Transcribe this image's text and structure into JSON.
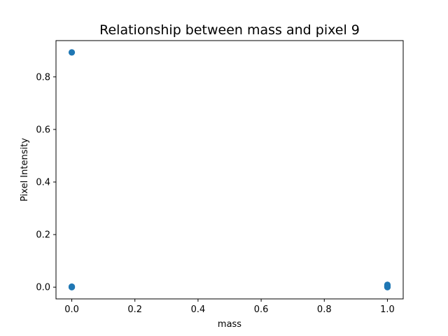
{
  "chart_data": {
    "type": "scatter",
    "title": "Relationship between mass and pixel 9",
    "xlabel": "mass",
    "ylabel": "Pixel Intensity",
    "xlim": [
      -0.05,
      1.05
    ],
    "ylim": [
      -0.0447,
      0.938
    ],
    "xticks": [
      0.0,
      0.2,
      0.4,
      0.6,
      0.8,
      1.0
    ],
    "xtick_labels": [
      "0.0",
      "0.2",
      "0.4",
      "0.6",
      "0.8",
      "1.0"
    ],
    "yticks": [
      0.0,
      0.2,
      0.4,
      0.6,
      0.8
    ],
    "ytick_labels": [
      "0.0",
      "0.2",
      "0.4",
      "0.6",
      "0.8"
    ],
    "grid": false,
    "legend": "none",
    "marker_color": "#1f77b4",
    "series": [
      {
        "x": [
          0.0,
          0.0,
          0.0,
          0.0,
          0.0,
          1.0,
          1.0,
          1.0,
          1.0,
          1.0,
          1.0
        ],
        "y": [
          0.893,
          0.0,
          0.001,
          0.002,
          0.0005,
          0.0,
          0.002,
          0.004,
          0.006,
          0.009,
          0.001
        ]
      }
    ]
  }
}
